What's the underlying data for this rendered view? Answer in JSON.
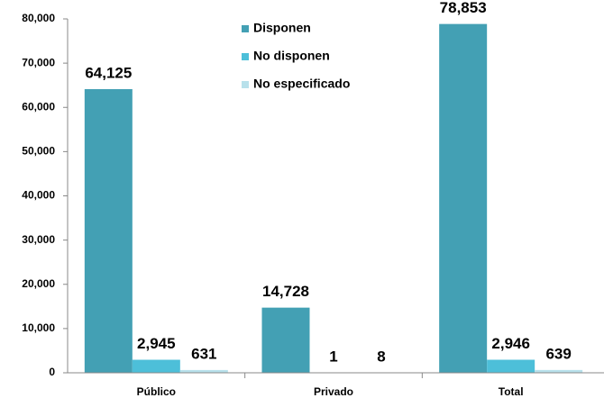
{
  "chart_data": {
    "type": "bar",
    "categories": [
      "Público",
      "Privado",
      "Total"
    ],
    "series": [
      {
        "name": "Disponen",
        "color": "#43a0b4",
        "values": [
          64125,
          14728,
          78853
        ],
        "value_labels": [
          "64,125",
          "14,728",
          "78,853"
        ]
      },
      {
        "name": "No disponen",
        "color": "#4dbfd9",
        "values": [
          2945,
          1,
          2946
        ],
        "value_labels": [
          "2,945",
          "1",
          "2,946"
        ]
      },
      {
        "name": "No especificado",
        "color": "#b8e1eb",
        "values": [
          631,
          8,
          639
        ],
        "value_labels": [
          "631",
          "8",
          "639"
        ]
      }
    ],
    "ylim": [
      0,
      80000
    ],
    "yticks": [
      0,
      {
        "value": 10000,
        "label": "10,000"
      },
      {
        "value": 20000,
        "label": "20,000"
      },
      {
        "value": 30000,
        "label": "30,000"
      },
      {
        "value": 40000,
        "label": "40,000"
      },
      {
        "value": 50000,
        "label": "50,000"
      },
      {
        "value": 60000,
        "label": "60,000"
      },
      {
        "value": 70000,
        "label": "70,000"
      },
      {
        "value": 80000,
        "label": "80,000"
      }
    ],
    "legend": "top"
  }
}
